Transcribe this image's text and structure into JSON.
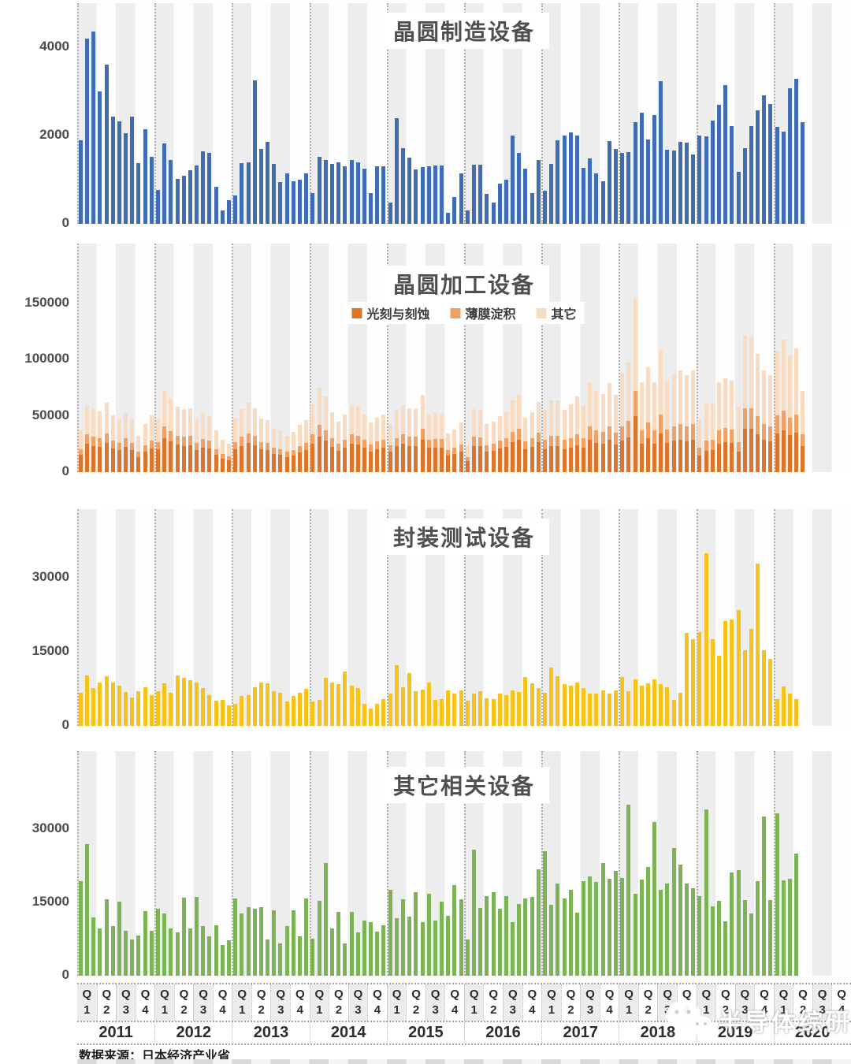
{
  "footer_source": "数据来源：日本经济产业省",
  "watermark_text": "半导体综研",
  "x_axis": {
    "quarter_prefix": "Q",
    "quarter_numbers": [
      "1",
      "2",
      "3",
      "4"
    ],
    "years": [
      "2011",
      "2012",
      "2013",
      "2014",
      "2015",
      "2016",
      "2017",
      "2018",
      "2019",
      "2020"
    ]
  },
  "chart_data": [
    {
      "type": "bar",
      "title": "晶圆制造设备",
      "color": "#3e6cb5",
      "granularity": "monthly, Jan 2011 onward",
      "ylim": [
        0,
        5000
      ],
      "yticks": [
        0,
        2000,
        4000
      ],
      "values": [
        1900,
        4200,
        4350,
        3000,
        3600,
        2430,
        2320,
        2050,
        2430,
        1380,
        2140,
        1520,
        770,
        1820,
        1450,
        1020,
        1090,
        1220,
        1320,
        1640,
        1600,
        840,
        300,
        540,
        650,
        1380,
        1400,
        3250,
        1700,
        1850,
        1350,
        950,
        1140,
        965,
        1000,
        1140,
        700,
        1520,
        1450,
        1360,
        1390,
        1300,
        1450,
        1400,
        1250,
        700,
        1300,
        1300,
        480,
        2390,
        1710,
        1500,
        1230,
        1290,
        1300,
        1330,
        1320,
        250,
        600,
        1150,
        300,
        1340,
        1340,
        680,
        480,
        910,
        1000,
        2000,
        1600,
        1250,
        700,
        1450,
        750,
        1350,
        1900,
        2000,
        2070,
        2000,
        1270,
        1480,
        1140,
        965,
        1870,
        1700,
        1610,
        1620,
        2300,
        2510,
        1915,
        2460,
        3230,
        1680,
        1660,
        1850,
        1840,
        1570,
        2000,
        1985,
        2340,
        2700,
        3140,
        2215,
        1180,
        1715,
        2215,
        2570,
        2910,
        2715,
        2195,
        2090,
        3070,
        3285,
        2300
      ]
    },
    {
      "type": "stacked-bar",
      "title": "晶圆加工设备",
      "granularity": "monthly, Jan 2011 onward",
      "ylim": [
        0,
        160000
      ],
      "yticks": [
        0,
        50000,
        100000,
        150000
      ],
      "legend_position": "top",
      "series": [
        {
          "name": "光刻与刻蚀",
          "color": "#dd7429",
          "values": [
            15500,
            25000,
            23500,
            22500,
            26000,
            21000,
            19500,
            22500,
            19500,
            13500,
            18000,
            21000,
            20000,
            30500,
            27500,
            24500,
            23500,
            24000,
            19500,
            22000,
            21000,
            15500,
            12000,
            10500,
            20000,
            23500,
            26000,
            24000,
            20000,
            19500,
            16000,
            15500,
            13500,
            15000,
            17500,
            19500,
            25000,
            31500,
            28000,
            22500,
            19000,
            21500,
            25000,
            24500,
            21500,
            18500,
            20500,
            21500,
            18000,
            23000,
            25000,
            23500,
            23500,
            29000,
            21500,
            22000,
            22000,
            14500,
            16000,
            18500,
            10000,
            23500,
            23500,
            18000,
            19000,
            21000,
            22500,
            27000,
            29000,
            20500,
            22500,
            26500,
            20000,
            23000,
            23000,
            20000,
            21500,
            24000,
            21500,
            29000,
            26000,
            25000,
            28500,
            24500,
            28000,
            31000,
            49500,
            25500,
            30000,
            25500,
            34500,
            26000,
            28000,
            29000,
            27500,
            29000,
            15000,
            19000,
            19500,
            25500,
            26500,
            26000,
            18500,
            38500,
            38500,
            33500,
            29000,
            27500,
            34500,
            37500,
            33000,
            35000,
            23000
          ]
        },
        {
          "name": "薄膜淀积",
          "color": "#f0a165",
          "values": [
            5000,
            8500,
            8000,
            7500,
            8500,
            7000,
            6500,
            7500,
            6500,
            4500,
            6000,
            7000,
            6500,
            10000,
            9000,
            8000,
            8000,
            8000,
            6500,
            7500,
            7000,
            5000,
            4000,
            3500,
            6500,
            8000,
            8500,
            8000,
            6500,
            6500,
            5500,
            5000,
            4500,
            5000,
            6000,
            6500,
            8500,
            10500,
            9500,
            7500,
            6500,
            7000,
            8500,
            8000,
            7000,
            6000,
            7000,
            7000,
            6000,
            7500,
            8500,
            8000,
            8000,
            9500,
            7000,
            7500,
            7500,
            5000,
            5500,
            6000,
            3500,
            8000,
            7500,
            6000,
            6500,
            7000,
            7500,
            9000,
            9500,
            7000,
            7500,
            8500,
            8500,
            9500,
            9500,
            8500,
            9000,
            10000,
            9000,
            12000,
            11000,
            10500,
            12000,
            10500,
            13000,
            14500,
            23000,
            12000,
            14000,
            12000,
            16500,
            12000,
            13000,
            13500,
            13000,
            13500,
            7000,
            9000,
            9000,
            12000,
            12500,
            12000,
            8500,
            18000,
            18000,
            16000,
            13500,
            13000,
            16000,
            17500,
            15500,
            16500,
            11000
          ]
        },
        {
          "name": "其它",
          "color": "#f8dbc1",
          "values": [
            16500,
            25500,
            24500,
            24000,
            27500,
            22500,
            21000,
            23500,
            21000,
            14500,
            18500,
            22500,
            21000,
            32000,
            29000,
            25500,
            24500,
            25000,
            20500,
            23000,
            22000,
            16500,
            13000,
            11500,
            21000,
            24500,
            27000,
            25000,
            21000,
            20500,
            17000,
            16500,
            14500,
            16000,
            18500,
            20500,
            26500,
            33000,
            29500,
            23000,
            19500,
            22500,
            25500,
            25500,
            22500,
            19500,
            21000,
            22500,
            18500,
            24000,
            26000,
            25000,
            24500,
            30000,
            22500,
            23000,
            22500,
            15000,
            16500,
            19500,
            10500,
            24500,
            24500,
            18500,
            19500,
            21500,
            23000,
            28000,
            30000,
            21000,
            23500,
            27500,
            27000,
            31000,
            31000,
            27000,
            29500,
            33000,
            28500,
            39000,
            35000,
            34000,
            38500,
            33500,
            47000,
            52000,
            81500,
            42500,
            49000,
            42500,
            57500,
            43000,
            47000,
            48000,
            45500,
            48000,
            25000,
            32000,
            33000,
            42500,
            44500,
            43500,
            31000,
            64500,
            63500,
            55500,
            48000,
            45500,
            57500,
            62500,
            55000,
            58500,
            38000
          ]
        }
      ]
    },
    {
      "type": "bar",
      "title": "封装测试设备",
      "color": "#f7c31b",
      "granularity": "monthly, Jan 2011 onward",
      "ylim": [
        0,
        37000
      ],
      "yticks": [
        0,
        15000,
        30000
      ],
      "values": [
        6700,
        10200,
        7700,
        8800,
        10100,
        8700,
        8200,
        6900,
        5800,
        7000,
        7900,
        6200,
        7000,
        8600,
        6700,
        10200,
        9800,
        9300,
        8700,
        7700,
        6200,
        5100,
        5300,
        4200,
        4450,
        6050,
        6150,
        7900,
        8700,
        8600,
        7000,
        6700,
        4900,
        6050,
        6700,
        7550,
        5000,
        5250,
        9800,
        8850,
        8450,
        11000,
        8100,
        7650,
        4450,
        3500,
        4450,
        5400,
        6500,
        12300,
        7750,
        10750,
        7000,
        7400,
        8850,
        5250,
        5500,
        7250,
        6600,
        7250,
        5100,
        6500,
        7000,
        5650,
        5500,
        6500,
        6300,
        7250,
        6850,
        9900,
        8650,
        7650,
        6700,
        11800,
        10100,
        8500,
        8200,
        8800,
        7650,
        6500,
        6500,
        7250,
        6600,
        7250,
        9900,
        7000,
        9400,
        8100,
        8650,
        9400,
        8450,
        7750,
        5250,
        6700,
        18800,
        17500,
        19000,
        35000,
        17600,
        14200,
        21200,
        21600,
        23500,
        15400,
        19700,
        32800,
        15300,
        13500,
        5450,
        7950,
        6500,
        5450
      ]
    },
    {
      "type": "bar",
      "title": "其它相关设备",
      "color": "#7cb455",
      "granularity": "monthly, Jan 2011 onward",
      "ylim": [
        0,
        37000
      ],
      "yticks": [
        0,
        15000,
        30000
      ],
      "values": [
        19400,
        26900,
        12000,
        9600,
        15600,
        10100,
        15100,
        9150,
        7400,
        8250,
        13200,
        9200,
        13700,
        12800,
        9750,
        8900,
        16000,
        9750,
        16100,
        10100,
        8000,
        10300,
        6350,
        7250,
        15750,
        12800,
        14050,
        13700,
        14050,
        7400,
        13350,
        6600,
        10100,
        13350,
        8100,
        15750,
        7650,
        15400,
        23100,
        9650,
        13000,
        6650,
        13100,
        8800,
        11250,
        11000,
        9050,
        10350,
        17550,
        11800,
        15700,
        12050,
        17150,
        11000,
        16800,
        11250,
        15150,
        12300,
        18600,
        15700,
        7500,
        25800,
        13950,
        16350,
        17150,
        13650,
        16350,
        11000,
        14750,
        15800,
        16100,
        21750,
        25500,
        14450,
        18950,
        15800,
        17550,
        12850,
        19300,
        20300,
        19150,
        23000,
        19850,
        21450,
        20000,
        35000,
        16700,
        19700,
        22300,
        31400,
        17550,
        18950,
        26150,
        22800,
        18950,
        17950,
        16350,
        34000,
        14200,
        15400,
        11100,
        21200,
        21650,
        15550,
        12700,
        19400,
        32650,
        15500,
        33200,
        19500,
        19800,
        25000
      ]
    }
  ]
}
